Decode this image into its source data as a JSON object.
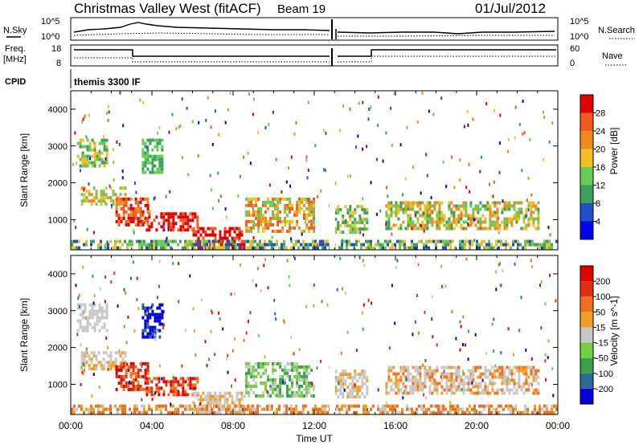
{
  "header": {
    "station": "Christmas Valley West (fitACF)",
    "beam": "Beam 19",
    "date": "01/Jul/2012"
  },
  "noise_panel": {
    "left_label": "N.Sky",
    "right_label": "N.Search",
    "tick_top": "10^5",
    "tick_bottom": "10^0"
  },
  "freq_panel": {
    "left_label_1": "Freq.",
    "left_label_2": "[MHz]",
    "right_label": "Nave",
    "left_ticks": [
      "18",
      "8"
    ],
    "right_ticks": [
      "60",
      "0"
    ]
  },
  "cpid_panel": {
    "label": "CPID",
    "program": "themis 3300 IF"
  },
  "chart_data": [
    {
      "type": "heatmap",
      "title": "",
      "xlabel": "",
      "ylabel": "Slant Range [km]",
      "x_range_hours": [
        0,
        24
      ],
      "ylim": [
        180,
        4500
      ],
      "yticks": [
        "1000",
        "2000",
        "3000",
        "4000"
      ],
      "colorbar_label": "Power [dB]",
      "colorbar_ticks": [
        "4",
        "8",
        "12",
        "16",
        "20",
        "24",
        "28"
      ],
      "colorbar_colors": [
        "#0000ee",
        "#2050c8",
        "#3aa05a",
        "#66cc55",
        "#f0c020",
        "#f08a20",
        "#f05a20",
        "#e00000"
      ]
    },
    {
      "type": "heatmap",
      "title": "",
      "xlabel": "Time UT",
      "ylabel": "Slant Range [km]",
      "x_range_hours": [
        0,
        24
      ],
      "xticks": [
        "00:00",
        "04:00",
        "08:00",
        "12:00",
        "16:00",
        "20:00",
        "00:00"
      ],
      "ylim": [
        180,
        4500
      ],
      "yticks": [
        "1000",
        "2000",
        "3000",
        "4000"
      ],
      "colorbar_label": "Velocity [m s^-1]",
      "colorbar_ticks": [
        "200",
        "100",
        "50",
        "15",
        "-15",
        "-50",
        "-100",
        "-200"
      ],
      "colorbar_colors": [
        "#0000dd",
        "#2a6a9a",
        "#3aa04a",
        "#70d040",
        "#c8c8c8",
        "#f0a020",
        "#f07020",
        "#e03010",
        "#e00000"
      ]
    }
  ]
}
